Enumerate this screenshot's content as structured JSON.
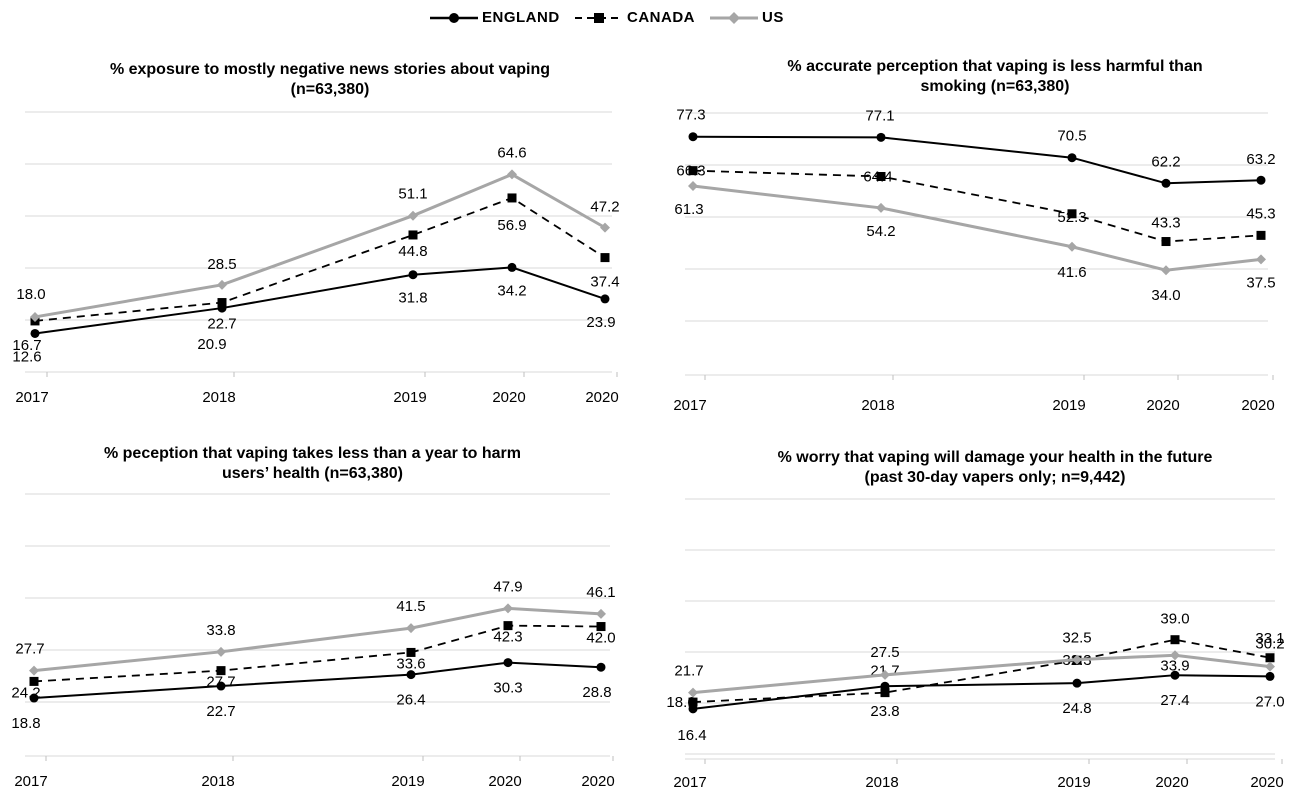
{
  "legend": [
    {
      "name": "ENGLAND",
      "color": "#000000",
      "dash": "solid",
      "marker": "circle"
    },
    {
      "name": "CANADA",
      "color": "#000000",
      "dash": "dashed",
      "marker": "square"
    },
    {
      "name": "US",
      "color": "#a6a6a6",
      "dash": "solid",
      "marker": "diamond"
    }
  ],
  "chart_data": [
    {
      "type": "line",
      "title": "% exposure to mostly negative news stories about vaping",
      "subtitle": "(n=63,380)",
      "categories": [
        "2017",
        "2018",
        "2019",
        "2020",
        "2020"
      ],
      "ylim": [
        0,
        100
      ],
      "grid": true,
      "series": [
        {
          "name": "ENGLAND",
          "values": [
            12.6,
            20.9,
            31.8,
            34.2,
            23.9
          ]
        },
        {
          "name": "CANADA",
          "values": [
            16.7,
            22.7,
            44.8,
            56.9,
            37.4
          ]
        },
        {
          "name": "US",
          "values": [
            18.0,
            28.5,
            51.1,
            64.6,
            47.2
          ]
        }
      ],
      "labels": [
        [
          "12.6",
          "20.9",
          "31.8",
          "34.2",
          "23.9"
        ],
        [
          "16.7",
          "22.7",
          "44.8",
          "56.9",
          "37.4"
        ],
        [
          "18.0",
          "28.5",
          "51.1",
          "64.6",
          "47.2"
        ]
      ]
    },
    {
      "type": "line",
      "title": "% accurate perception that vaping is less harmful than",
      "subtitle": "smoking (n=63,380)",
      "categories": [
        "2017",
        "2018",
        "2019",
        "2020",
        "2020"
      ],
      "ylim": [
        0,
        100
      ],
      "grid": true,
      "series": [
        {
          "name": "ENGLAND",
          "values": [
            77.3,
            77.1,
            70.5,
            62.2,
            63.2
          ]
        },
        {
          "name": "CANADA",
          "values": [
            66.3,
            64.4,
            52.3,
            43.3,
            45.3
          ]
        },
        {
          "name": "US",
          "values": [
            61.3,
            54.2,
            41.6,
            34.0,
            37.5
          ]
        }
      ],
      "labels": [
        [
          "77.3",
          "77.1",
          "70.5",
          "62.2",
          "63.2"
        ],
        [
          "66.3",
          "64.4",
          "52.3",
          "43.3",
          "45.3"
        ],
        [
          "61.3",
          "54.2",
          "41.6",
          "34.0",
          "37.5"
        ]
      ]
    },
    {
      "type": "line",
      "title": "% peception that vaping takes less than a year to harm",
      "subtitle": "users’ health (n=63,380)",
      "categories": [
        "2017",
        "2018",
        "2019",
        "2020",
        "2020"
      ],
      "ylim": [
        0,
        100
      ],
      "grid": true,
      "series": [
        {
          "name": "ENGLAND",
          "values": [
            18.8,
            22.7,
            26.4,
            30.3,
            28.8
          ]
        },
        {
          "name": "CANADA",
          "values": [
            24.2,
            27.7,
            33.6,
            42.3,
            42.0
          ]
        },
        {
          "name": "US",
          "values": [
            27.7,
            33.8,
            41.5,
            47.9,
            46.1
          ]
        }
      ],
      "labels": [
        [
          "18.8",
          "22.7",
          "26.4",
          "30.3",
          "28.8"
        ],
        [
          "24.2",
          "27.7",
          "33.6",
          "42.3",
          "42.0"
        ],
        [
          "27.7",
          "33.8",
          "41.5",
          "47.9",
          "46.1"
        ]
      ]
    },
    {
      "type": "line",
      "title": "% worry that vaping will damage your health in the future",
      "subtitle": "(past 30-day vapers only; n=9,442)",
      "categories": [
        "2017",
        "2018",
        "2019",
        "2020",
        "2020"
      ],
      "ylim": [
        0,
        100
      ],
      "grid": true,
      "series": [
        {
          "name": "ENGLAND",
          "values": [
            16.4,
            23.8,
            24.8,
            27.4,
            27.0
          ]
        },
        {
          "name": "CANADA",
          "values": [
            18.6,
            21.7,
            32.3,
            39.0,
            33.1
          ]
        },
        {
          "name": "US",
          "values": [
            21.7,
            27.5,
            32.5,
            33.9,
            30.2
          ]
        }
      ],
      "labels": [
        [
          "16.4",
          "23.8",
          "24.8",
          "27.4",
          "27.0"
        ],
        [
          "18.6",
          "21.7",
          "32.3",
          "39.0",
          "33.1"
        ],
        [
          "21.7",
          "27.5",
          "32.5",
          "33.9",
          "30.2"
        ]
      ]
    }
  ]
}
